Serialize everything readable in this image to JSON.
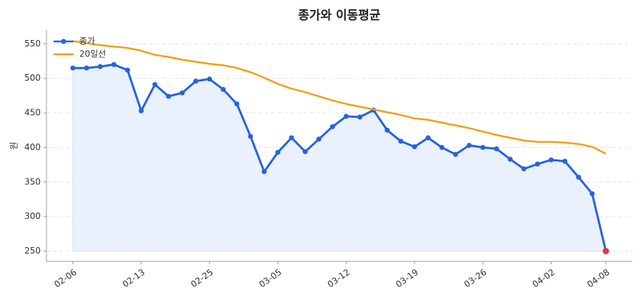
{
  "chart_data": {
    "type": "line",
    "title": "종가와 이동평균",
    "y_label": "원",
    "categories": [
      "02-06",
      null,
      null,
      null,
      null,
      "02-13",
      null,
      null,
      null,
      null,
      "02-25",
      null,
      null,
      null,
      null,
      "03-05",
      null,
      null,
      null,
      null,
      "03-12",
      null,
      null,
      null,
      null,
      "03-19",
      null,
      null,
      null,
      null,
      "03-26",
      null,
      null,
      null,
      null,
      "04-02",
      null,
      null,
      null,
      "04-08"
    ],
    "series": [
      {
        "name": "종가",
        "color": "#2563e0",
        "marker": true,
        "fill": "#eaf0fc",
        "last_point_color": "#e53935",
        "values": [
          515,
          515,
          517,
          520,
          512,
          453,
          491,
          474,
          479,
          496,
          499,
          484,
          463,
          416,
          365,
          393,
          414,
          394,
          412,
          430,
          445,
          444,
          454,
          425,
          409,
          401,
          414,
          400,
          390,
          403,
          400,
          398,
          383,
          369,
          376,
          382,
          380,
          357,
          333,
          250
        ]
      },
      {
        "name": "20일선",
        "color": "#f0a014",
        "marker": false,
        "values": [
          554,
          551,
          548,
          546,
          544,
          540,
          534,
          531,
          527,
          524,
          521,
          519,
          515,
          509,
          501,
          492,
          485,
          480,
          474,
          468,
          463,
          459,
          455,
          451,
          447,
          442,
          440,
          436,
          432,
          428,
          423,
          418,
          414,
          410,
          408,
          408,
          407,
          405,
          401,
          391
        ]
      }
    ],
    "ylim": [
      235,
      570
    ],
    "yticks": [
      250,
      300,
      350,
      400,
      450,
      500,
      550
    ],
    "grid": true,
    "legend": "upper left"
  }
}
